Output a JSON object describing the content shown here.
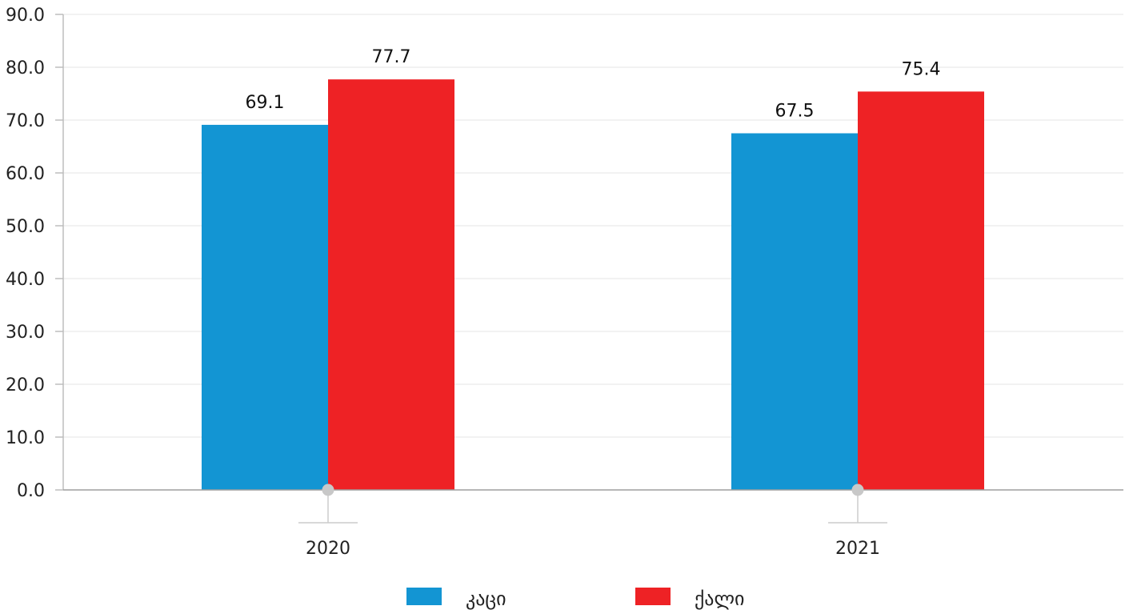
{
  "chart_data": {
    "type": "bar",
    "categories": [
      "2020",
      "2021"
    ],
    "series": [
      {
        "name": "კაცი",
        "values": [
          69.1,
          67.5
        ],
        "color": "#1395d3"
      },
      {
        "name": "ქალი",
        "values": [
          77.7,
          75.4
        ],
        "color": "#ee2225"
      }
    ],
    "y_ticks": [
      "0.0",
      "10.0",
      "20.0",
      "30.0",
      "40.0",
      "50.0",
      "60.0",
      "70.0",
      "80.0",
      "90.0"
    ],
    "data_labels": [
      [
        "69.1",
        "67.5"
      ],
      [
        "77.7",
        "75.4"
      ]
    ],
    "ylim": [
      0,
      90
    ],
    "grid": true,
    "legend_position": "bottom-center",
    "title": "",
    "xlabel": "",
    "ylabel": ""
  }
}
